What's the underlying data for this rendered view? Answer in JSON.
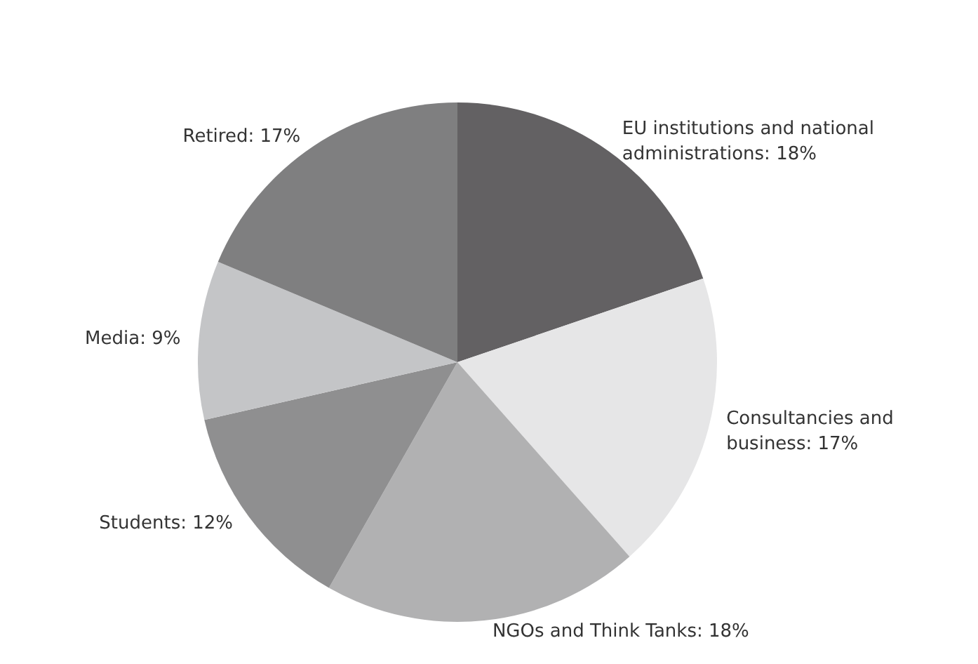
{
  "chart_data": {
    "type": "pie",
    "categories": [
      "EU institutions and national administrations",
      "Consultancies and business",
      "NGOs and Think Tanks",
      "Students",
      "Media",
      "Retired"
    ],
    "values": [
      18,
      17,
      18,
      12,
      9,
      17
    ],
    "value_labels": [
      "18%",
      "17%",
      "18%",
      "12%",
      "9%",
      "17%"
    ],
    "colors": [
      "#636163",
      "#e6e6e7",
      "#b1b1b2",
      "#8f8f90",
      "#c4c5c7",
      "#7f7f80"
    ],
    "legend": false
  }
}
